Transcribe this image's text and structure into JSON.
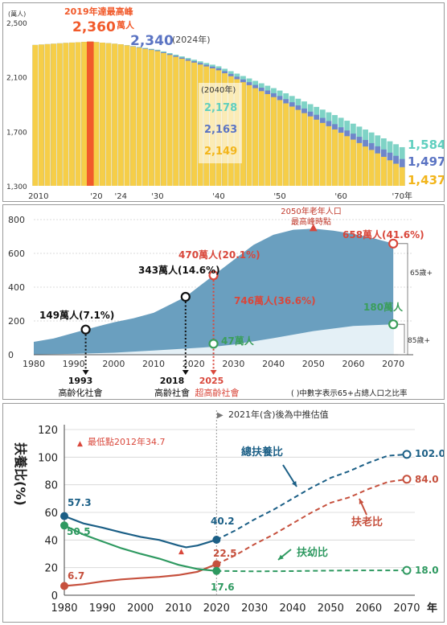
{
  "chart_data": [
    {
      "type": "bar",
      "unit_label": "(萬人)",
      "ylim": [
        1300,
        2500
      ],
      "y_ticks": [
        "2,500",
        "2,100",
        "1,700",
        "1,300"
      ],
      "x_ticks": [
        "2010",
        "'20",
        "'24",
        "'30",
        "'40",
        "'50",
        "'60",
        "'70年"
      ],
      "series": [
        {
          "name": "high",
          "color": "#7fd3c6",
          "points": [
            [
              2010,
              2335
            ],
            [
              2015,
              2350
            ],
            [
              2019,
              2360
            ],
            [
              2024,
              2340
            ],
            [
              2030,
              2300
            ],
            [
              2040,
              2178
            ],
            [
              2050,
              2000
            ],
            [
              2060,
              1800
            ],
            [
              2070,
              1584
            ]
          ]
        },
        {
          "name": "medium",
          "color": "#6f86c9",
          "points": [
            [
              2010,
              2335
            ],
            [
              2015,
              2350
            ],
            [
              2019,
              2360
            ],
            [
              2024,
              2340
            ],
            [
              2030,
              2295
            ],
            [
              2040,
              2163
            ],
            [
              2050,
              1960
            ],
            [
              2060,
              1730
            ],
            [
              2070,
              1497
            ]
          ]
        },
        {
          "name": "low",
          "color": "#f6ce48",
          "points": [
            [
              2010,
              2335
            ],
            [
              2015,
              2350
            ],
            [
              2019,
              2360
            ],
            [
              2024,
              2340
            ],
            [
              2030,
              2290
            ],
            [
              2040,
              2149
            ],
            [
              2050,
              1930
            ],
            [
              2060,
              1690
            ],
            [
              2070,
              1437
            ]
          ]
        }
      ],
      "peak": {
        "year": 2019,
        "line1": "2019年達最高峰",
        "value": "2,360",
        "unit": "萬人",
        "color": "#f15a2b"
      },
      "current": {
        "value": "2,340",
        "note": "(2024年)"
      },
      "y2040": {
        "label": "(2040年)",
        "high": "2,178",
        "medium": "2,163",
        "low": "2,149"
      },
      "y2070": {
        "high": "1,584",
        "medium": "1,497",
        "low": "1,437"
      },
      "colors": {
        "high": "#5fcfbf",
        "medium": "#5b74c3",
        "low": "#f2b51b"
      }
    },
    {
      "type": "area",
      "xlim": [
        1980,
        2075
      ],
      "ylim": [
        0,
        800
      ],
      "x_ticks": [
        1980,
        1990,
        2000,
        2010,
        2020,
        2030,
        2040,
        2050,
        2060,
        2070
      ],
      "y_ticks": [
        0,
        200,
        400,
        600,
        800
      ],
      "series": [
        {
          "name": "65歲+",
          "color": "#6a9fbf",
          "points": [
            [
              1980,
              76
            ],
            [
              1985,
              96
            ],
            [
              1993,
              149
            ],
            [
              2000,
              192
            ],
            [
              2005,
              216
            ],
            [
              2010,
              248
            ],
            [
              2018,
              343
            ],
            [
              2025,
              470
            ],
            [
              2030,
              560
            ],
            [
              2035,
              650
            ],
            [
              2040,
              710
            ],
            [
              2045,
              740
            ],
            [
              2050,
              746
            ],
            [
              2055,
              735
            ],
            [
              2060,
              715
            ],
            [
              2065,
              690
            ],
            [
              2070,
              658
            ]
          ]
        },
        {
          "name": "85歲+",
          "color": "#e4f0f6",
          "points": [
            [
              1980,
              2
            ],
            [
              1990,
              5
            ],
            [
              2000,
              12
            ],
            [
              2010,
              25
            ],
            [
              2020,
              39
            ],
            [
              2025,
              47
            ],
            [
              2030,
              60
            ],
            [
              2040,
              98
            ],
            [
              2050,
              140
            ],
            [
              2060,
              170
            ],
            [
              2070,
              180
            ]
          ]
        }
      ],
      "annotations": {
        "peak_title_1": "2050年老年人口",
        "peak_title_2": "最高峰時點",
        "l1993": "149萬人(7.1%)",
        "l2018": "343萬人(14.6%)",
        "l2025": "470萬人(20.1%)",
        "l2050": "746萬人(36.6%)",
        "l2070": "658萬人(41.6%)",
        "l85_2025": "47萬人",
        "l85_2070": "180萬人",
        "side65": "65歲+",
        "side85": "85歲+",
        "y1993": "1993",
        "c1993": "高齡化社會",
        "y2018": "2018",
        "c2018": "高齡社會",
        "y2025": "2025",
        "c2025": "超高齡社會",
        "note": "( )中數字表示65+占總人口之比率"
      },
      "colors": {
        "red": "#d9473b",
        "green": "#3a9e5a"
      }
    },
    {
      "type": "line",
      "xlim": [
        1980,
        2070
      ],
      "ylim": [
        0,
        120
      ],
      "x_ticks": [
        "1980",
        "1990",
        "2000",
        "2010",
        "2020",
        "2030",
        "2040",
        "2050",
        "2060",
        "2070"
      ],
      "x_unit": "年",
      "y_ticks": [
        "0",
        "20",
        "40",
        "60",
        "80",
        "100",
        "120"
      ],
      "ylabel": "扶養比(%)",
      "projection_note": "2021年(含)後為中推估值",
      "min_note": "最低點2012年34.7",
      "series": [
        {
          "name": "總扶養比",
          "color": "#1b5f86",
          "points": [
            [
              1980,
              57.3
            ],
            [
              1985,
              52
            ],
            [
              1990,
              49
            ],
            [
              1995,
              45.5
            ],
            [
              2000,
              42.3
            ],
            [
              2005,
              40
            ],
            [
              2010,
              36
            ],
            [
              2012,
              34.7
            ],
            [
              2015,
              36
            ],
            [
              2020,
              40.2
            ],
            [
              2025,
              47
            ],
            [
              2030,
              55
            ],
            [
              2035,
              62
            ],
            [
              2040,
              70
            ],
            [
              2045,
              78
            ],
            [
              2050,
              85
            ],
            [
              2055,
              90
            ],
            [
              2060,
              96
            ],
            [
              2065,
              101
            ],
            [
              2070,
              102.0
            ]
          ],
          "start_label": "57.3",
          "label_2020": "40.2",
          "end_label": "102.0"
        },
        {
          "name": "扶老比",
          "color": "#c6503d",
          "points": [
            [
              1980,
              6.7
            ],
            [
              1985,
              8
            ],
            [
              1990,
              10
            ],
            [
              1995,
              11.5
            ],
            [
              2000,
              12.4
            ],
            [
              2005,
              13.3
            ],
            [
              2010,
              14.6
            ],
            [
              2015,
              17
            ],
            [
              2020,
              22.5
            ],
            [
              2025,
              29
            ],
            [
              2030,
              37
            ],
            [
              2035,
              44
            ],
            [
              2040,
              52
            ],
            [
              2045,
              60
            ],
            [
              2050,
              67
            ],
            [
              2055,
              71
            ],
            [
              2060,
              77
            ],
            [
              2065,
              82
            ],
            [
              2070,
              84.0
            ]
          ],
          "start_label": "6.7",
          "label_2020": "22.5",
          "end_label": "84.0"
        },
        {
          "name": "扶幼比",
          "color": "#2e9960",
          "points": [
            [
              1980,
              50.5
            ],
            [
              1985,
              44
            ],
            [
              1990,
              39
            ],
            [
              1995,
              34
            ],
            [
              2000,
              30
            ],
            [
              2005,
              26.5
            ],
            [
              2010,
              22
            ],
            [
              2015,
              19
            ],
            [
              2020,
              17.6
            ],
            [
              2025,
              17.5
            ],
            [
              2030,
              17.3
            ],
            [
              2040,
              17.5
            ],
            [
              2050,
              17.8
            ],
            [
              2060,
              18
            ],
            [
              2070,
              18.0
            ]
          ],
          "start_label": "50.5",
          "label_2020": "17.6",
          "end_label": "18.0"
        }
      ]
    }
  ]
}
